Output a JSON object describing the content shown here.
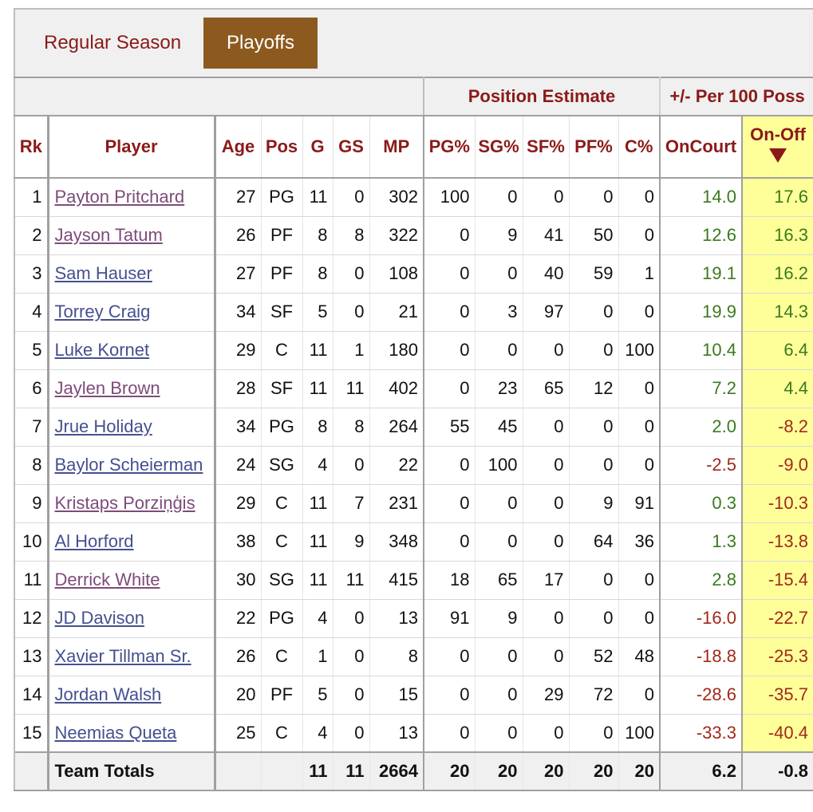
{
  "tabs": [
    {
      "label": "Regular Season",
      "active": false
    },
    {
      "label": "Playoffs",
      "active": true
    }
  ],
  "over_header": {
    "position_estimate": "Position Estimate",
    "plus_minus": "+/- Per 100 Poss"
  },
  "columns": {
    "rk": "Rk",
    "player": "Player",
    "age": "Age",
    "pos": "Pos",
    "g": "G",
    "gs": "GS",
    "mp": "MP",
    "pg": "PG%",
    "sg": "SG%",
    "sf": "SF%",
    "pf": "PF%",
    "c": "C%",
    "oncourt": "OnCourt",
    "onoff": "On-Off"
  },
  "sorted_column": "On-Off",
  "sort_icon": "sort-desc-icon",
  "colors": {
    "positive": "#3a7a1e",
    "negative": "#a02a1a",
    "sorted_bg": "#ffff99",
    "active_tab": "#8c5a1e",
    "header_text": "#8b1a1a"
  },
  "rows": [
    {
      "rk": "1",
      "player": "Payton Pritchard",
      "visited": true,
      "age": "27",
      "pos": "PG",
      "g": "11",
      "gs": "0",
      "mp": "302",
      "pg": "100",
      "sg": "0",
      "sf": "0",
      "pf": "0",
      "c": "0",
      "oncourt": "14.0",
      "onoff": "17.6"
    },
    {
      "rk": "2",
      "player": "Jayson Tatum",
      "visited": true,
      "age": "26",
      "pos": "PF",
      "g": "8",
      "gs": "8",
      "mp": "322",
      "pg": "0",
      "sg": "9",
      "sf": "41",
      "pf": "50",
      "c": "0",
      "oncourt": "12.6",
      "onoff": "16.3"
    },
    {
      "rk": "3",
      "player": "Sam Hauser",
      "visited": false,
      "age": "27",
      "pos": "PF",
      "g": "8",
      "gs": "0",
      "mp": "108",
      "pg": "0",
      "sg": "0",
      "sf": "40",
      "pf": "59",
      "c": "1",
      "oncourt": "19.1",
      "onoff": "16.2"
    },
    {
      "rk": "4",
      "player": "Torrey Craig",
      "visited": false,
      "age": "34",
      "pos": "SF",
      "g": "5",
      "gs": "0",
      "mp": "21",
      "pg": "0",
      "sg": "3",
      "sf": "97",
      "pf": "0",
      "c": "0",
      "oncourt": "19.9",
      "onoff": "14.3"
    },
    {
      "rk": "5",
      "player": "Luke Kornet",
      "visited": false,
      "age": "29",
      "pos": "C",
      "g": "11",
      "gs": "1",
      "mp": "180",
      "pg": "0",
      "sg": "0",
      "sf": "0",
      "pf": "0",
      "c": "100",
      "oncourt": "10.4",
      "onoff": "6.4"
    },
    {
      "rk": "6",
      "player": "Jaylen Brown",
      "visited": true,
      "age": "28",
      "pos": "SF",
      "g": "11",
      "gs": "11",
      "mp": "402",
      "pg": "0",
      "sg": "23",
      "sf": "65",
      "pf": "12",
      "c": "0",
      "oncourt": "7.2",
      "onoff": "4.4"
    },
    {
      "rk": "7",
      "player": "Jrue Holiday",
      "visited": false,
      "age": "34",
      "pos": "PG",
      "g": "8",
      "gs": "8",
      "mp": "264",
      "pg": "55",
      "sg": "45",
      "sf": "0",
      "pf": "0",
      "c": "0",
      "oncourt": "2.0",
      "onoff": "-8.2"
    },
    {
      "rk": "8",
      "player": "Baylor Scheierman",
      "visited": false,
      "age": "24",
      "pos": "SG",
      "g": "4",
      "gs": "0",
      "mp": "22",
      "pg": "0",
      "sg": "100",
      "sf": "0",
      "pf": "0",
      "c": "0",
      "oncourt": "-2.5",
      "onoff": "-9.0"
    },
    {
      "rk": "9",
      "player": "Kristaps Porziņģis",
      "visited": true,
      "age": "29",
      "pos": "C",
      "g": "11",
      "gs": "7",
      "mp": "231",
      "pg": "0",
      "sg": "0",
      "sf": "0",
      "pf": "9",
      "c": "91",
      "oncourt": "0.3",
      "onoff": "-10.3"
    },
    {
      "rk": "10",
      "player": "Al Horford",
      "visited": false,
      "age": "38",
      "pos": "C",
      "g": "11",
      "gs": "9",
      "mp": "348",
      "pg": "0",
      "sg": "0",
      "sf": "0",
      "pf": "64",
      "c": "36",
      "oncourt": "1.3",
      "onoff": "-13.8"
    },
    {
      "rk": "11",
      "player": "Derrick White",
      "visited": true,
      "age": "30",
      "pos": "SG",
      "g": "11",
      "gs": "11",
      "mp": "415",
      "pg": "18",
      "sg": "65",
      "sf": "17",
      "pf": "0",
      "c": "0",
      "oncourt": "2.8",
      "onoff": "-15.4"
    },
    {
      "rk": "12",
      "player": "JD Davison",
      "visited": false,
      "age": "22",
      "pos": "PG",
      "g": "4",
      "gs": "0",
      "mp": "13",
      "pg": "91",
      "sg": "9",
      "sf": "0",
      "pf": "0",
      "c": "0",
      "oncourt": "-16.0",
      "onoff": "-22.7"
    },
    {
      "rk": "13",
      "player": "Xavier Tillman Sr.",
      "visited": false,
      "age": "26",
      "pos": "C",
      "g": "1",
      "gs": "0",
      "mp": "8",
      "pg": "0",
      "sg": "0",
      "sf": "0",
      "pf": "52",
      "c": "48",
      "oncourt": "-18.8",
      "onoff": "-25.3"
    },
    {
      "rk": "14",
      "player": "Jordan Walsh",
      "visited": false,
      "age": "20",
      "pos": "PF",
      "g": "5",
      "gs": "0",
      "mp": "15",
      "pg": "0",
      "sg": "0",
      "sf": "29",
      "pf": "72",
      "c": "0",
      "oncourt": "-28.6",
      "onoff": "-35.7"
    },
    {
      "rk": "15",
      "player": "Neemias Queta",
      "visited": false,
      "age": "25",
      "pos": "C",
      "g": "4",
      "gs": "0",
      "mp": "13",
      "pg": "0",
      "sg": "0",
      "sf": "0",
      "pf": "0",
      "c": "100",
      "oncourt": "-33.3",
      "onoff": "-40.4"
    }
  ],
  "totals": {
    "label": "Team Totals",
    "g": "11",
    "gs": "11",
    "mp": "2664",
    "pg": "20",
    "sg": "20",
    "sf": "20",
    "pf": "20",
    "c": "20",
    "oncourt": "6.2",
    "onoff": "-0.8"
  }
}
